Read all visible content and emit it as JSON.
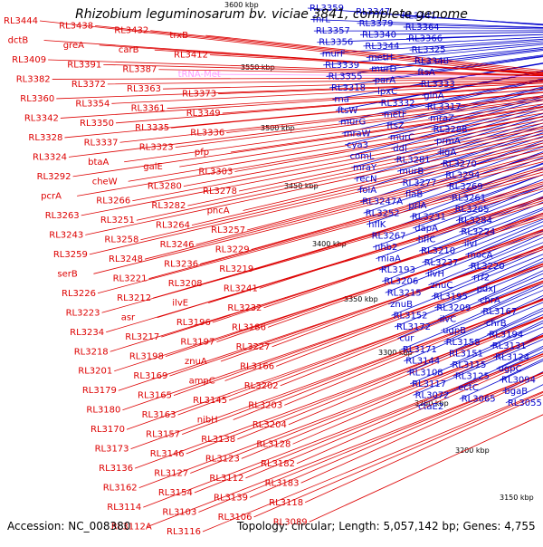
{
  "title": "Rhizobium leguminosarum bv. viciae 3841, complete genome",
  "accession": "Accession: NC_008380",
  "summary": "Topology: circular; Length: 5,057,142 bp; Genes: 4,755",
  "colors": {
    "forward": "#0000cc",
    "reverse": "#dd0000",
    "rna": "#ff99ff",
    "backbone": "#777777"
  },
  "ticks": [
    "3600 kbp",
    "3550 kbp",
    "3500 kbp",
    "3450 kbp",
    "3400 kbp",
    "3350 kbp",
    "3300 kbp",
    "3250 kbp",
    "3200 kbp",
    "3150 kbp"
  ],
  "labels_right": [
    "RL3359",
    "RL3347",
    "RL3341",
    "fnrL",
    "RL3379",
    "RL3364",
    "RL3357",
    "RL3340",
    "RL3366",
    "RL3356",
    "RL3344",
    "RL3325",
    "murF",
    "metH",
    "RL3348",
    "RL3339",
    "murD",
    "ftsA",
    "RL3355",
    "parA",
    "RL3333",
    "RL3318",
    "lpxC",
    "glnA",
    "rna",
    "RL3332",
    "RL3317",
    "ftsW",
    "metF",
    "mraZ",
    "murG",
    "ftsZ",
    "RL3288",
    "mraW",
    "murC",
    "prmA",
    "cya3",
    "ddl",
    "ligA",
    "comL",
    "RL3281",
    "RL3270",
    "mraY",
    "murB",
    "RL3294",
    "recN",
    "RL3277",
    "RL3269",
    "folA",
    "flaB",
    "RL3261",
    "RL3247A",
    "prlA",
    "RL3265",
    "RL3252",
    "RL3231",
    "RL3284",
    "hflK",
    "dapA",
    "RL3224",
    "RL3267",
    "hflC",
    "ilvI",
    "nhb2",
    "RL3210",
    "mocA",
    "miaA",
    "RL3237",
    "RL3220",
    "RL3193",
    "ilvH",
    "rrf2",
    "RL3206",
    "znuC",
    "pdxJ",
    "RL3215",
    "RL3195",
    "chrA",
    "znuB",
    "RL3209",
    "RL3167",
    "RL3152",
    "ilvC",
    "chrB",
    "RL3172",
    "ugpB",
    "RL3194",
    "cur",
    "RL3158",
    "RL3131",
    "RL3171",
    "RL3151",
    "RL3124",
    "RL3144",
    "RL3115",
    "ugpC",
    "RL3108",
    "RL3125",
    "RL3094",
    "RL3117",
    "ectC",
    "bgaB",
    "RL3072",
    "RL3065",
    "RL3055",
    "ctaE2"
  ],
  "labels_left": [
    "RL3444",
    "RL3438",
    "RL3432",
    "trxB",
    "dctB",
    "greA",
    "carB",
    "RL3412",
    "RL3409",
    "RL3391",
    "RL3387",
    "tRNA-Met",
    "RL3382",
    "RL3372",
    "RL3363",
    "RL3373",
    "RL3360",
    "RL3354",
    "RL3361",
    "RL3349",
    "RL3342",
    "RL3350",
    "RL3335",
    "RL3336",
    "RL3328",
    "RL3337",
    "RL3323",
    "pfp",
    "RL3324",
    "btaA",
    "galE",
    "RL3303",
    "RL3292",
    "cheW",
    "RL3280",
    "RL3278",
    "pcrA",
    "RL3266",
    "RL3282",
    "pncA",
    "RL3263",
    "RL3251",
    "RL3264",
    "RL3257",
    "RL3243",
    "RL3258",
    "RL3246",
    "RL3229",
    "RL3259",
    "RL3248",
    "RL3236",
    "RL3219",
    "serB",
    "RL3221",
    "RL3208",
    "RL3241",
    "RL3226",
    "RL3212",
    "ilvE",
    "RL3232",
    "RL3223",
    "asr",
    "RL3196",
    "RL3186",
    "RL3234",
    "RL3217",
    "RL3197",
    "RL3227",
    "RL3218",
    "RL3198",
    "znuA",
    "RL3166",
    "RL3201",
    "RL3169",
    "ampC",
    "RL3202",
    "RL3179",
    "RL3165",
    "RL3145",
    "RL3203",
    "RL3180",
    "RL3163",
    "nibH",
    "RL3204",
    "RL3170",
    "RL3157",
    "RL3138",
    "RL3128",
    "RL3173",
    "RL3146",
    "RL3123",
    "RL3182",
    "RL3136",
    "RL3127",
    "RL3112",
    "RL3183",
    "RL3162",
    "RL3154",
    "RL3139",
    "RL3118",
    "RL3114",
    "RL3103",
    "RL3106",
    "RL3089",
    "RL3112A",
    "RL3116"
  ]
}
